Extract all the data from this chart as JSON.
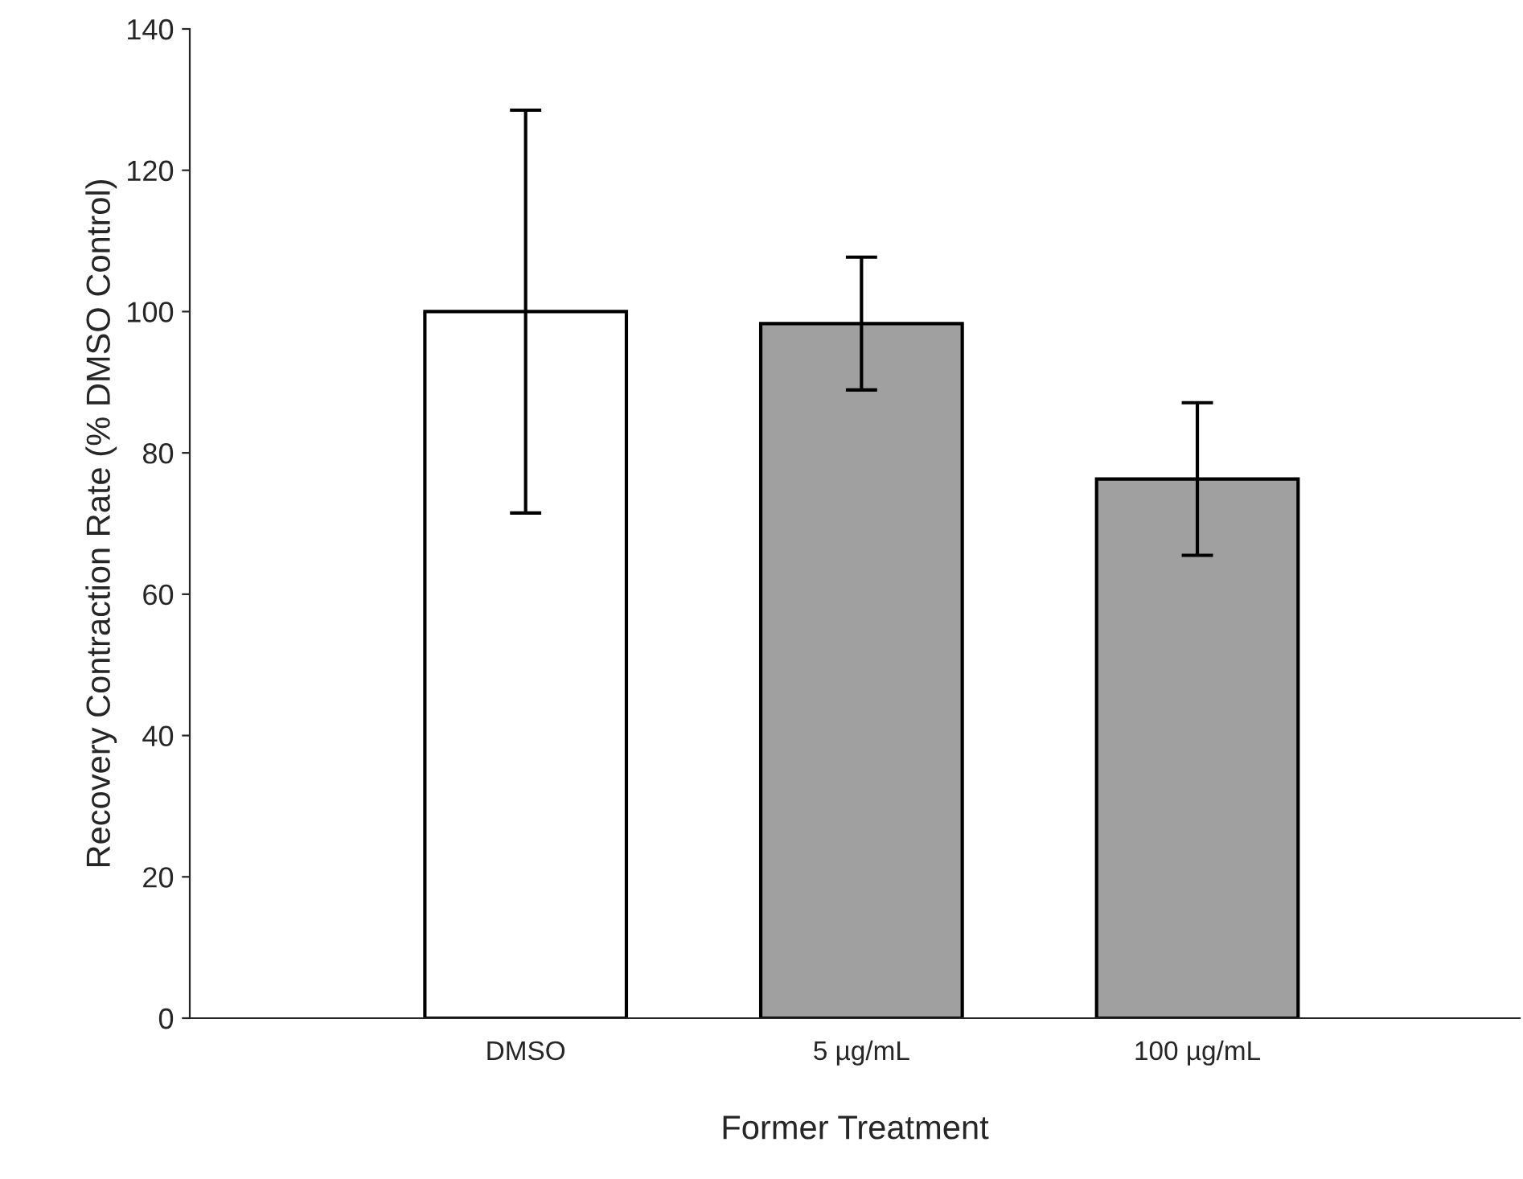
{
  "chart_data": {
    "type": "bar",
    "xlabel": "Former Treatment",
    "ylabel": "Recovery Contraction Rate (% DMSO Control)",
    "categories": [
      "DMSO",
      "5 µg/mL",
      "100 µg/mL"
    ],
    "values": [
      100,
      98.3,
      76.3
    ],
    "errors": [
      28.5,
      9.4,
      10.8
    ],
    "colors": [
      "#ffffff",
      "#a0a0a0",
      "#a0a0a0"
    ],
    "ylim": [
      0,
      140
    ],
    "yticks": [
      0,
      20,
      40,
      60,
      80,
      100,
      120,
      140
    ],
    "grid": false,
    "legend": false
  }
}
